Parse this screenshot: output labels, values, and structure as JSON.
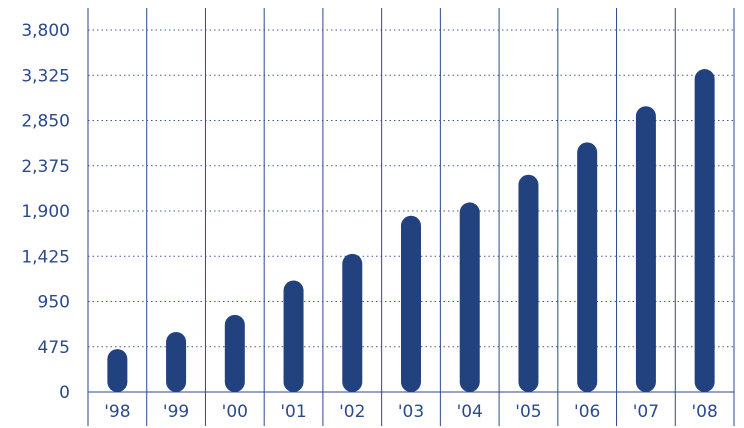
{
  "chart_data": {
    "type": "bar",
    "categories": [
      "'98",
      "'99",
      "'00",
      "'01",
      "'02",
      "'03",
      "'04",
      "'05",
      "'06",
      "'07",
      "'08"
    ],
    "values": [
      450,
      630,
      810,
      1170,
      1450,
      1850,
      1990,
      2280,
      2620,
      3000,
      3390
    ],
    "title": "",
    "xlabel": "",
    "ylabel": "",
    "ylim": [
      0,
      3800
    ],
    "yticks": [
      "0",
      "475",
      "950",
      "1,425",
      "1,900",
      "2,375",
      "2,850",
      "3,325",
      "3,800"
    ],
    "ytick_values": [
      0,
      475,
      950,
      1425,
      1900,
      2375,
      2850,
      3325,
      3800
    ],
    "grid": true,
    "bar_color": "#21417f",
    "text_color": "#2b4a8c"
  }
}
